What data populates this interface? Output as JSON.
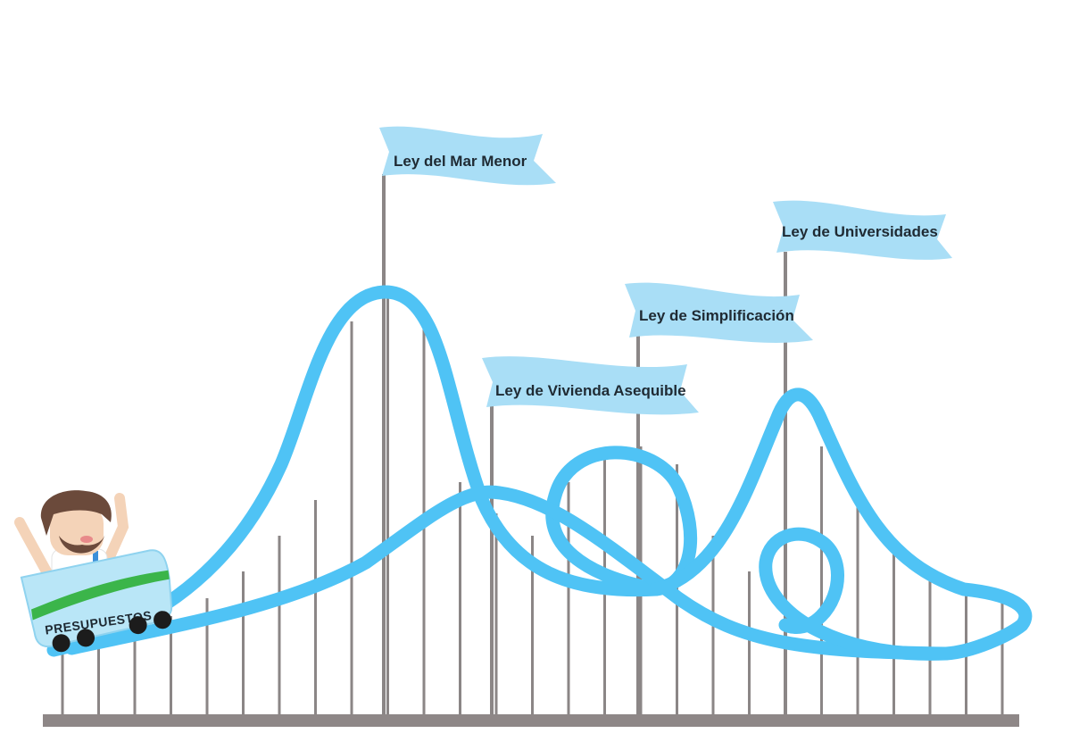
{
  "flags": [
    {
      "id": "mar-menor",
      "label": "Ley del  Mar Menor"
    },
    {
      "id": "vivienda",
      "label": "Ley de Vivienda Asequible"
    },
    {
      "id": "simplificacion",
      "label": "Ley de Simplificación"
    },
    {
      "id": "universidades",
      "label": "Ley de Universidades"
    }
  ],
  "cart": {
    "label": "PRESUPUESTOS"
  },
  "colors": {
    "track": "#4fc3f5",
    "flag": "#a9def6",
    "pole": "#8b8686",
    "ground": "#8e8787",
    "cart_body": "#b9e6f7",
    "cart_stripe": "#3bb54a"
  }
}
